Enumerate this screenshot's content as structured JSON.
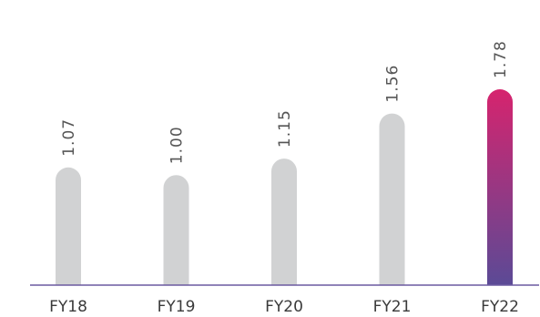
{
  "chart_data": {
    "type": "bar",
    "categories": [
      "FY18",
      "FY19",
      "FY20",
      "FY21",
      "FY22"
    ],
    "values": [
      1.07,
      1.0,
      1.15,
      1.56,
      1.78
    ],
    "data_labels": [
      "1.07",
      "1.00",
      "1.15",
      "1.56",
      "1.78"
    ],
    "title": "",
    "xlabel": "",
    "ylabel": "",
    "ylim": [
      0,
      1.78
    ],
    "grid": false,
    "legend": "none",
    "colors": {
      "bar": "#d1d2d3",
      "highlight_top": "#d6246e",
      "highlight_bottom": "#5b4a96",
      "axis": "#6b5aa0"
    },
    "highlight_category": "FY22"
  }
}
